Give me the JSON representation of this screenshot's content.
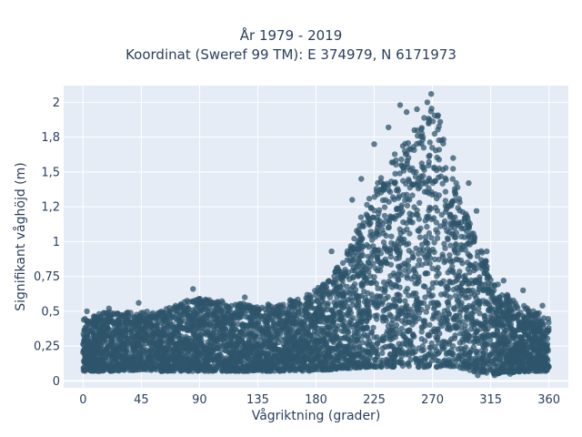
{
  "chart_data": {
    "type": "scatter",
    "title": "År 1979 - 2019",
    "subtitle": "Koordinat (Sweref 99 TM): E 374979, N 6171973",
    "xlabel": "Vågriktning (grader)",
    "ylabel": "Signifikant våghöjd (m)",
    "xlim": [
      -15,
      375
    ],
    "ylim": [
      -0.05,
      2.12
    ],
    "x_ticks": [
      0,
      45,
      90,
      135,
      180,
      225,
      270,
      315,
      360
    ],
    "x_tick_labels": [
      "0",
      "45",
      "90",
      "135",
      "180",
      "225",
      "270",
      "315",
      "360"
    ],
    "y_ticks": [
      0,
      0.25,
      0.5,
      0.75,
      1,
      1.25,
      1.5,
      1.75,
      2
    ],
    "y_tick_labels": [
      "0",
      "0,25",
      "0,5",
      "0,75",
      "1",
      "1,2",
      "1,5",
      "1,8",
      "2"
    ],
    "grid": true,
    "marker_color": "#2e546b",
    "background_color": "#e5ecf6",
    "envelope": [
      {
        "x": 0,
        "low": 0.07,
        "high": 0.45
      },
      {
        "x": 20,
        "low": 0.07,
        "high": 0.5
      },
      {
        "x": 45,
        "low": 0.08,
        "high": 0.5
      },
      {
        "x": 60,
        "low": 0.07,
        "high": 0.5
      },
      {
        "x": 85,
        "low": 0.07,
        "high": 0.6
      },
      {
        "x": 100,
        "low": 0.07,
        "high": 0.58
      },
      {
        "x": 130,
        "low": 0.07,
        "high": 0.55
      },
      {
        "x": 150,
        "low": 0.07,
        "high": 0.55
      },
      {
        "x": 170,
        "low": 0.07,
        "high": 0.6
      },
      {
        "x": 190,
        "low": 0.08,
        "high": 0.72
      },
      {
        "x": 205,
        "low": 0.09,
        "high": 0.95
      },
      {
        "x": 220,
        "low": 0.1,
        "high": 1.3
      },
      {
        "x": 235,
        "low": 0.1,
        "high": 1.55
      },
      {
        "x": 250,
        "low": 0.1,
        "high": 1.75
      },
      {
        "x": 262,
        "low": 0.1,
        "high": 1.85
      },
      {
        "x": 270,
        "low": 0.1,
        "high": 2.05
      },
      {
        "x": 280,
        "low": 0.1,
        "high": 1.75
      },
      {
        "x": 292,
        "low": 0.09,
        "high": 1.3
      },
      {
        "x": 305,
        "low": 0.06,
        "high": 1.0
      },
      {
        "x": 318,
        "low": 0.05,
        "high": 0.72
      },
      {
        "x": 330,
        "low": 0.06,
        "high": 0.6
      },
      {
        "x": 345,
        "low": 0.07,
        "high": 0.52
      },
      {
        "x": 360,
        "low": 0.07,
        "high": 0.45
      }
    ],
    "outliers": [
      {
        "x": 269,
        "y": 2.06
      },
      {
        "x": 266,
        "y": 2.0
      },
      {
        "x": 258,
        "y": 1.95
      },
      {
        "x": 245,
        "y": 1.98
      },
      {
        "x": 274,
        "y": 1.9
      },
      {
        "x": 250,
        "y": 1.93
      },
      {
        "x": 276,
        "y": 1.86
      },
      {
        "x": 236,
        "y": 1.82
      },
      {
        "x": 256,
        "y": 1.8
      },
      {
        "x": 225,
        "y": 1.7
      },
      {
        "x": 286,
        "y": 1.6
      },
      {
        "x": 298,
        "y": 1.42
      },
      {
        "x": 208,
        "y": 1.3
      },
      {
        "x": 215,
        "y": 1.45
      },
      {
        "x": 304,
        "y": 1.22
      },
      {
        "x": 312,
        "y": 0.93
      },
      {
        "x": 325,
        "y": 0.72
      },
      {
        "x": 192,
        "y": 0.93
      },
      {
        "x": 85,
        "y": 0.66
      },
      {
        "x": 43,
        "y": 0.56
      },
      {
        "x": 340,
        "y": 0.65
      },
      {
        "x": 355,
        "y": 0.54
      },
      {
        "x": 3,
        "y": 0.5
      },
      {
        "x": 20,
        "y": 0.52
      },
      {
        "x": 125,
        "y": 0.6
      },
      {
        "x": 160,
        "y": 0.58
      },
      {
        "x": 318,
        "y": 0.04
      },
      {
        "x": 305,
        "y": 0.04
      },
      {
        "x": 330,
        "y": 0.05
      }
    ]
  }
}
